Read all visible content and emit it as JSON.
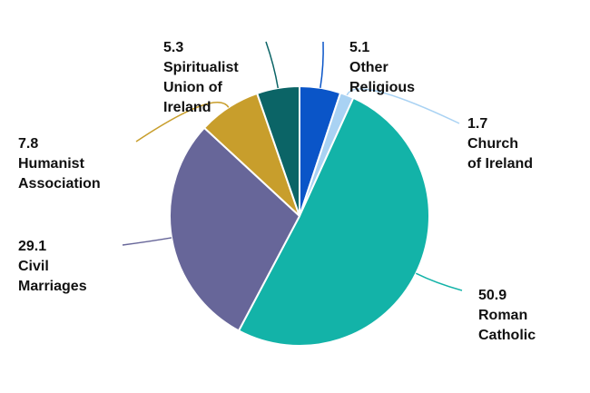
{
  "chart_data": {
    "type": "pie",
    "slices": [
      {
        "value": 5.1,
        "value_label": "5.1",
        "label_lines": [
          "Other",
          "Religious"
        ],
        "color": "#0a55c8"
      },
      {
        "value": 1.7,
        "value_label": "1.7",
        "label_lines": [
          "Church",
          "of Ireland"
        ],
        "color": "#a9d2f3"
      },
      {
        "value": 50.9,
        "value_label": "50.9",
        "label_lines": [
          "Roman",
          "Catholic"
        ],
        "color": "#13b3a8"
      },
      {
        "value": 29.1,
        "value_label": "29.1",
        "label_lines": [
          "Civil",
          "Marriages"
        ],
        "color": "#676699"
      },
      {
        "value": 7.8,
        "value_label": "7.8",
        "label_lines": [
          "Humanist",
          "Association"
        ],
        "color": "#c89e2c"
      },
      {
        "value": 5.3,
        "value_label": "5.3",
        "label_lines": [
          "Spiritualist",
          "Union of",
          "Ireland"
        ],
        "color": "#0b6466"
      }
    ]
  }
}
